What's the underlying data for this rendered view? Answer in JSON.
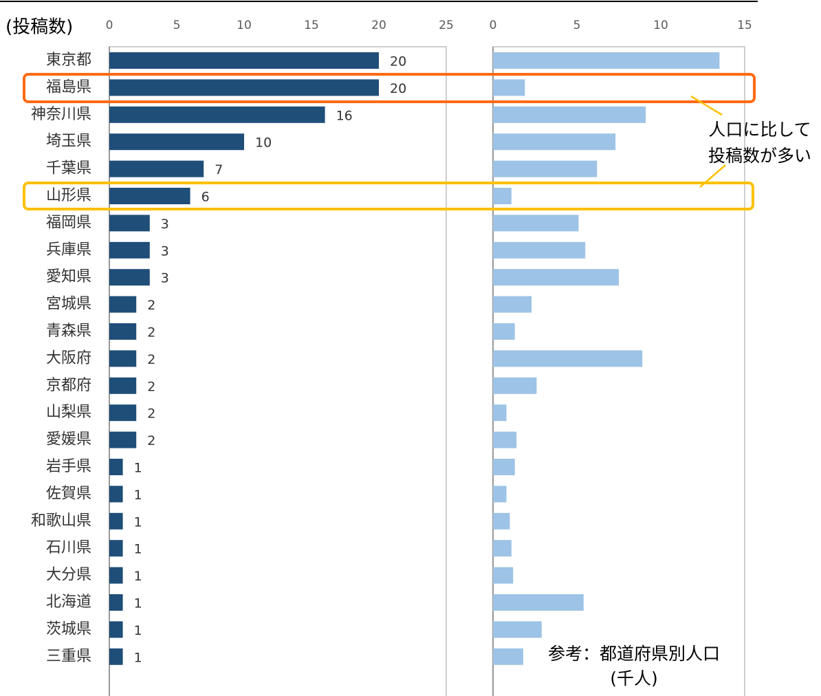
{
  "chart_data": [
    {
      "type": "bar",
      "orientation": "horizontal",
      "axis_label": "(投稿数)",
      "color": "#1f4e79",
      "categories": [
        "東京都",
        "福島県",
        "神奈川県",
        "埼玉県",
        "千葉県",
        "山形県",
        "福岡県",
        "兵庫県",
        "愛知県",
        "宮城県",
        "青森県",
        "大阪府",
        "京都府",
        "山梨県",
        "愛媛県",
        "岩手県",
        "佐賀県",
        "和歌山県",
        "石川県",
        "大分県",
        "北海道",
        "茨城県",
        "三重県"
      ],
      "values": [
        20,
        20,
        16,
        10,
        7,
        6,
        3,
        3,
        3,
        2,
        2,
        2,
        2,
        2,
        2,
        1,
        1,
        1,
        1,
        1,
        1,
        1,
        1
      ],
      "xlim": [
        0,
        25
      ],
      "xticks": [
        0,
        5,
        10,
        15,
        20,
        25
      ]
    },
    {
      "type": "bar",
      "orientation": "horizontal",
      "color": "#9dc3e6",
      "note": [
        "参考：都道府県別人口",
        "(千人)"
      ],
      "values": [
        13.5,
        1.9,
        9.1,
        7.3,
        6.2,
        1.1,
        5.1,
        5.5,
        7.5,
        2.3,
        1.3,
        8.9,
        2.6,
        0.8,
        1.4,
        1.3,
        0.8,
        1.0,
        1.1,
        1.2,
        5.4,
        2.9,
        1.8
      ],
      "xlim": [
        0,
        15
      ],
      "xticks": [
        0,
        5,
        10,
        15
      ]
    }
  ],
  "callout": [
    "人口に比して",
    "投稿数が多い"
  ]
}
